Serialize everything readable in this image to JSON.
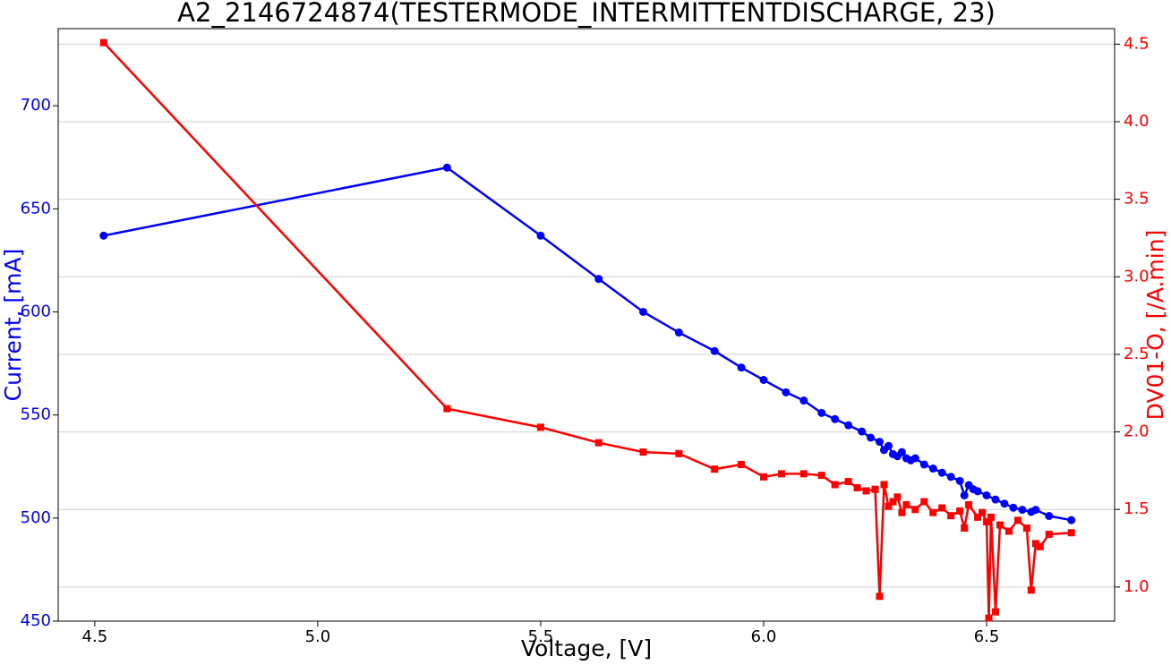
{
  "chart_data": {
    "type": "line",
    "title": "A2_2146724874(TESTERMODE_INTERMITTENTDISCHARGE, 23)",
    "x_label": "Voltage, [V]",
    "y_label": "Current, [mA]",
    "y2_label": "DV01-O, [/A.min]",
    "xlim": [
      4.418,
      6.787
    ],
    "ylim": [
      450,
      737.4
    ],
    "y2lim": [
      0.78,
      4.6
    ],
    "xticks": [
      {
        "value": 4.5,
        "label": "4.5"
      },
      {
        "value": 5.0,
        "label": "5.0"
      },
      {
        "value": 5.5,
        "label": "5.5"
      },
      {
        "value": 6.0,
        "label": "6.0"
      },
      {
        "value": 6.5,
        "label": "6.5"
      }
    ],
    "yticks": [
      450,
      500,
      550,
      600,
      650,
      700
    ],
    "y2ticks": [
      {
        "value": 1.0,
        "label": "1.0"
      },
      1.5,
      {
        "value": 2.0,
        "label": "2.0"
      },
      2.5,
      {
        "value": 3.0,
        "label": "3.0"
      },
      3.5,
      {
        "value": 4.0,
        "label": "4.0"
      },
      4.5
    ],
    "grid": "y2",
    "series": [
      {
        "name": "Current",
        "color": "#0000ff",
        "marker": "circle",
        "axis": "y",
        "x": [
          4.52,
          5.29,
          5.5,
          5.63,
          5.73,
          5.81,
          5.89,
          5.95,
          6.0,
          6.05,
          6.09,
          6.13,
          6.16,
          6.19,
          6.22,
          6.24,
          6.26,
          6.27,
          6.28,
          6.29,
          6.3,
          6.31,
          6.32,
          6.33,
          6.34,
          6.36,
          6.38,
          6.4,
          6.42,
          6.44,
          6.45,
          6.46,
          6.47,
          6.48,
          6.5,
          6.52,
          6.54,
          6.56,
          6.58,
          6.6,
          6.61,
          6.64,
          6.69
        ],
        "values": [
          637,
          670,
          637,
          616,
          600,
          590,
          581,
          573,
          567,
          561,
          557,
          551,
          548,
          545,
          542,
          539,
          537,
          533,
          535,
          531,
          530,
          532,
          529,
          528,
          529,
          526,
          524,
          522,
          520,
          518,
          511,
          516,
          514,
          513,
          511,
          509,
          507,
          505,
          504,
          503,
          504,
          501,
          499
        ]
      },
      {
        "name": "DV01-O",
        "color": "#ff0000",
        "marker": "square",
        "axis": "y2",
        "x": [
          4.52,
          5.29,
          5.5,
          5.63,
          5.73,
          5.81,
          5.89,
          5.95,
          6.0,
          6.04,
          6.09,
          6.13,
          6.16,
          6.19,
          6.21,
          6.23,
          6.25,
          6.26,
          6.27,
          6.28,
          6.29,
          6.3,
          6.31,
          6.32,
          6.34,
          6.36,
          6.38,
          6.4,
          6.42,
          6.44,
          6.45,
          6.46,
          6.48,
          6.49,
          6.5,
          6.505,
          6.51,
          6.52,
          6.53,
          6.55,
          6.57,
          6.59,
          6.6,
          6.61,
          6.62,
          6.64,
          6.69
        ],
        "values": [
          4.51,
          2.15,
          2.03,
          1.93,
          1.87,
          1.86,
          1.76,
          1.79,
          1.71,
          1.73,
          1.73,
          1.72,
          1.66,
          1.68,
          1.64,
          1.62,
          1.63,
          0.94,
          1.66,
          1.52,
          1.55,
          1.58,
          1.48,
          1.53,
          1.5,
          1.55,
          1.48,
          1.51,
          1.46,
          1.49,
          1.38,
          1.53,
          1.45,
          1.48,
          1.42,
          0.8,
          1.45,
          0.84,
          1.4,
          1.36,
          1.43,
          1.38,
          0.98,
          1.28,
          1.26,
          1.34,
          1.35
        ]
      }
    ]
  }
}
